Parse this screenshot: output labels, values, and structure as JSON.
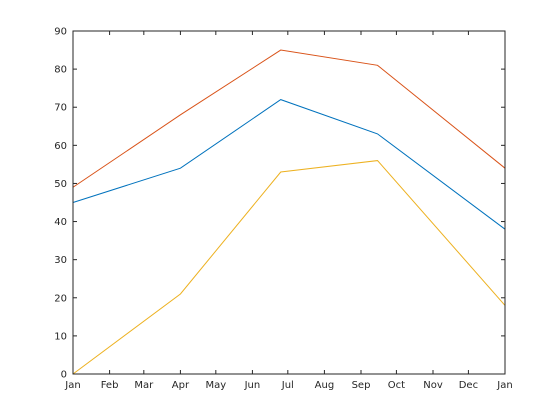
{
  "chart_data": {
    "type": "line",
    "title": "",
    "xlabel": "",
    "ylabel": "",
    "grid": false,
    "legend": "none",
    "xlim": [
      "2024-01-01",
      "2025-01-01"
    ],
    "ylim": [
      0,
      90
    ],
    "x_ticks": [
      {
        "date": "2024-01-01",
        "label": "Jan"
      },
      {
        "date": "2024-02-01",
        "label": "Feb"
      },
      {
        "date": "2024-03-01",
        "label": "Mar"
      },
      {
        "date": "2024-04-01",
        "label": "Apr"
      },
      {
        "date": "2024-05-01",
        "label": "May"
      },
      {
        "date": "2024-06-01",
        "label": "Jun"
      },
      {
        "date": "2024-07-01",
        "label": "Jul"
      },
      {
        "date": "2024-08-01",
        "label": "Aug"
      },
      {
        "date": "2024-09-01",
        "label": "Sep"
      },
      {
        "date": "2024-10-01",
        "label": "Oct"
      },
      {
        "date": "2024-11-01",
        "label": "Nov"
      },
      {
        "date": "2024-12-01",
        "label": "Dec"
      },
      {
        "date": "2025-01-01",
        "label": "Jan"
      }
    ],
    "y_ticks": [
      0,
      10,
      20,
      30,
      40,
      50,
      60,
      70,
      80,
      90
    ],
    "x": [
      "2024-01-01",
      "2024-04-01",
      "2024-06-25",
      "2024-09-15",
      "2025-01-01"
    ],
    "series": [
      {
        "color": "#0072BD",
        "values": [
          45,
          54,
          72,
          63,
          38
        ]
      },
      {
        "color": "#D95319",
        "values": [
          49,
          68,
          85,
          81,
          54
        ]
      },
      {
        "color": "#EDB120",
        "values": [
          0,
          21,
          53,
          56,
          18
        ]
      }
    ]
  }
}
